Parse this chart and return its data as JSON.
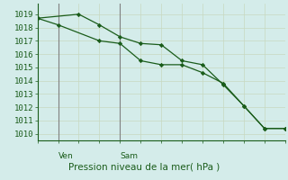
{
  "background_color": "#d4ecea",
  "grid_color": "#c8d8c0",
  "line_color": "#1a5c1a",
  "day_line_color": "#808080",
  "title": "Pression niveau de la mer( hPa )",
  "ylim": [
    1009.5,
    1019.8
  ],
  "yticks": [
    1010,
    1011,
    1012,
    1013,
    1014,
    1015,
    1016,
    1017,
    1018,
    1019
  ],
  "line1_x": [
    0,
    1,
    3,
    4,
    5,
    6,
    7,
    8,
    9,
    10,
    11,
    12
  ],
  "line1_y": [
    1018.7,
    1018.2,
    1017.0,
    1016.8,
    1015.5,
    1015.2,
    1015.2,
    1014.6,
    1013.8,
    1012.1,
    1010.4,
    1010.4
  ],
  "line2_x": [
    0,
    2,
    3,
    4,
    5,
    6,
    7,
    8,
    9,
    10,
    11,
    12
  ],
  "line2_y": [
    1018.7,
    1019.0,
    1018.2,
    1017.3,
    1016.8,
    1016.7,
    1015.5,
    1015.2,
    1013.7,
    1012.1,
    1010.4,
    1010.4
  ],
  "ven_x": 1.0,
  "sam_x": 4.0,
  "xlim": [
    0,
    12
  ],
  "n_xticks": 13,
  "title_fontsize": 7.5,
  "ylabel_fontsize": 6.5,
  "daylabel_fontsize": 6.5
}
